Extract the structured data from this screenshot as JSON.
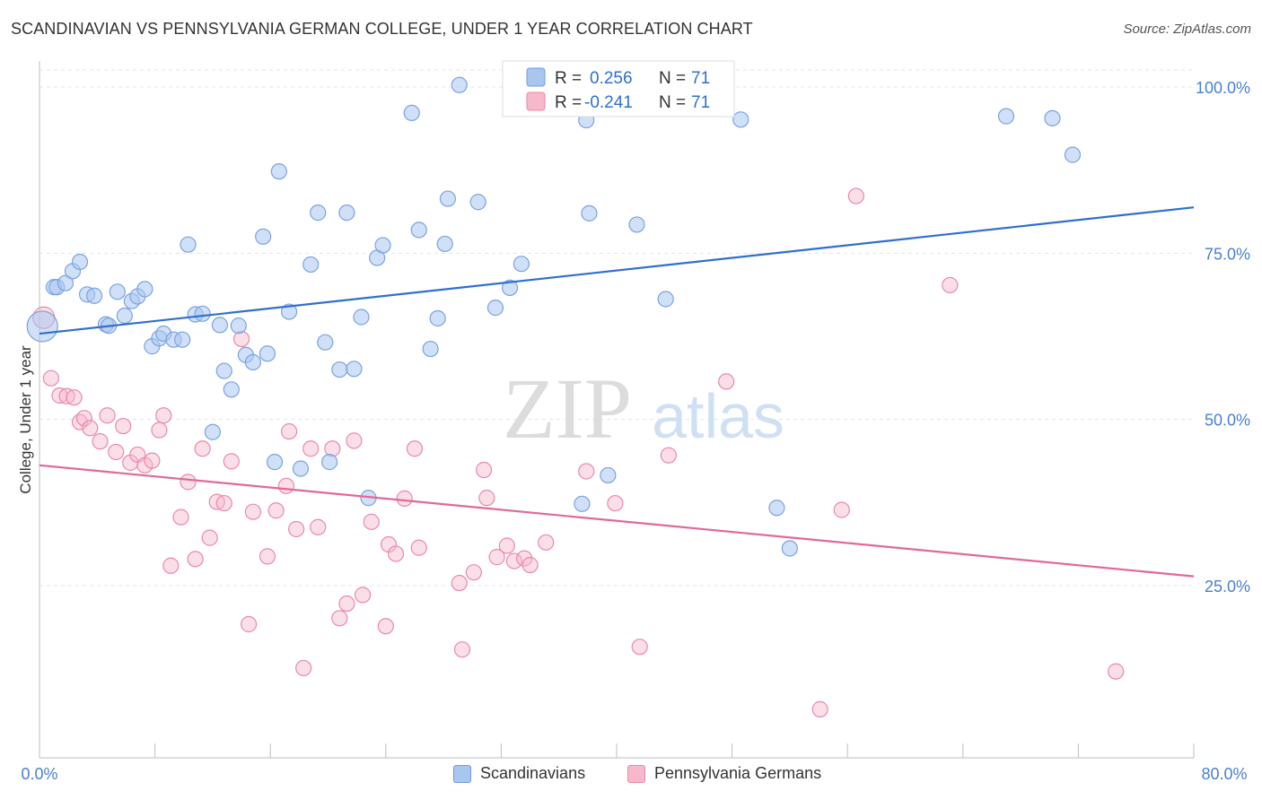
{
  "header": {
    "title": "SCANDINAVIAN VS PENNSYLVANIA GERMAN COLLEGE, UNDER 1 YEAR CORRELATION CHART",
    "source": "Source: ZipAtlas.com"
  },
  "watermark": {
    "zip": "ZIP",
    "atlas": "atlas"
  },
  "legend_top": [
    {
      "r_label": "R =",
      "r_value": "0.256",
      "n_label": "N =",
      "n_value": "71"
    },
    {
      "r_label": "R =",
      "r_value": "-0.241",
      "n_label": "N =",
      "n_value": "71"
    }
  ],
  "colors": {
    "blue_fill": "#a9c6f0",
    "blue_stroke": "#6f9be0",
    "blue_line": "#2f6fcf",
    "pink_fill": "#f7b8cb",
    "pink_stroke": "#ea89a8",
    "pink_line": "#e0699a",
    "axis_text": "#4a7fd0"
  },
  "chart_data": {
    "type": "scatter",
    "title": "SCANDINAVIAN VS PENNSYLVANIA GERMAN COLLEGE, UNDER 1 YEAR CORRELATION CHART",
    "xlabel": "",
    "ylabel": "College, Under 1 year",
    "xlim": [
      0,
      80
    ],
    "ylim": [
      0,
      105
    ],
    "x_tick_labels": [
      "0.0%",
      "80.0%"
    ],
    "y_ticks": [
      25,
      50,
      75,
      100
    ],
    "y_tick_labels": [
      "25.0%",
      "50.0%",
      "75.0%",
      "100.0%"
    ],
    "grid": true,
    "legend_position": "top-center",
    "series": [
      {
        "name": "Scandinavians",
        "color": "#a9c6f0",
        "r": 0.256,
        "n": 71,
        "trend": {
          "x": [
            0,
            80
          ],
          "y": [
            62.9,
            81.9
          ]
        },
        "points": [
          [
            0.2,
            64.0
          ],
          [
            1.0,
            69.9
          ],
          [
            1.2,
            69.9
          ],
          [
            1.8,
            70.5
          ],
          [
            2.3,
            72.3
          ],
          [
            2.8,
            73.7
          ],
          [
            3.3,
            68.8
          ],
          [
            3.8,
            68.6
          ],
          [
            4.6,
            64.3
          ],
          [
            4.8,
            64.1
          ],
          [
            5.4,
            69.2
          ],
          [
            5.9,
            65.6
          ],
          [
            6.4,
            67.8
          ],
          [
            6.8,
            68.5
          ],
          [
            7.3,
            69.6
          ],
          [
            7.8,
            61.0
          ],
          [
            8.3,
            62.2
          ],
          [
            8.6,
            62.9
          ],
          [
            9.3,
            62.0
          ],
          [
            9.9,
            62.0
          ],
          [
            10.3,
            76.3
          ],
          [
            10.8,
            65.8
          ],
          [
            11.3,
            65.9
          ],
          [
            12.0,
            48.1
          ],
          [
            12.5,
            64.2
          ],
          [
            12.8,
            57.3
          ],
          [
            13.3,
            54.5
          ],
          [
            13.8,
            64.1
          ],
          [
            14.3,
            59.7
          ],
          [
            14.8,
            58.6
          ],
          [
            15.5,
            77.5
          ],
          [
            15.8,
            59.9
          ],
          [
            16.3,
            43.6
          ],
          [
            16.6,
            87.3
          ],
          [
            17.3,
            66.2
          ],
          [
            18.1,
            42.6
          ],
          [
            18.8,
            73.3
          ],
          [
            19.3,
            81.1
          ],
          [
            19.8,
            61.6
          ],
          [
            20.1,
            43.6
          ],
          [
            20.8,
            57.5
          ],
          [
            21.3,
            81.1
          ],
          [
            21.8,
            57.6
          ],
          [
            22.3,
            65.4
          ],
          [
            22.8,
            38.2
          ],
          [
            23.4,
            74.3
          ],
          [
            23.8,
            76.2
          ],
          [
            25.8,
            96.1
          ],
          [
            26.3,
            78.5
          ],
          [
            27.1,
            60.6
          ],
          [
            27.6,
            65.2
          ],
          [
            28.1,
            76.4
          ],
          [
            28.3,
            83.2
          ],
          [
            29.1,
            100.3
          ],
          [
            30.4,
            82.7
          ],
          [
            31.6,
            66.8
          ],
          [
            32.6,
            69.8
          ],
          [
            33.4,
            73.4
          ],
          [
            37.6,
            37.3
          ],
          [
            37.9,
            95.0
          ],
          [
            38.1,
            81.0
          ],
          [
            39.4,
            41.6
          ],
          [
            41.4,
            79.3
          ],
          [
            43.4,
            68.1
          ],
          [
            47.4,
            100.1
          ],
          [
            48.6,
            95.1
          ],
          [
            51.1,
            36.7
          ],
          [
            52.0,
            30.6
          ],
          [
            67.0,
            95.6
          ],
          [
            70.2,
            95.3
          ],
          [
            71.6,
            89.8
          ]
        ]
      },
      {
        "name": "Pennsylvania Germans",
        "color": "#f7b8cb",
        "r": -0.241,
        "n": 71,
        "trend": {
          "x": [
            0,
            80
          ],
          "y": [
            43.1,
            26.4
          ]
        },
        "points": [
          [
            0.3,
            65.3
          ],
          [
            0.8,
            56.2
          ],
          [
            1.4,
            53.6
          ],
          [
            1.9,
            53.5
          ],
          [
            2.4,
            53.3
          ],
          [
            2.8,
            49.6
          ],
          [
            3.1,
            50.2
          ],
          [
            3.5,
            48.7
          ],
          [
            4.2,
            46.7
          ],
          [
            4.7,
            50.6
          ],
          [
            5.3,
            45.1
          ],
          [
            5.8,
            49.0
          ],
          [
            6.3,
            43.5
          ],
          [
            6.8,
            44.7
          ],
          [
            7.3,
            43.1
          ],
          [
            7.8,
            43.8
          ],
          [
            8.3,
            48.4
          ],
          [
            8.6,
            50.6
          ],
          [
            9.1,
            28.0
          ],
          [
            9.8,
            35.3
          ],
          [
            10.3,
            40.6
          ],
          [
            10.8,
            29.0
          ],
          [
            11.3,
            45.6
          ],
          [
            11.8,
            32.2
          ],
          [
            12.3,
            37.6
          ],
          [
            12.8,
            37.4
          ],
          [
            13.3,
            43.7
          ],
          [
            14.0,
            62.1
          ],
          [
            14.5,
            19.2
          ],
          [
            14.8,
            36.1
          ],
          [
            15.8,
            29.4
          ],
          [
            16.4,
            36.3
          ],
          [
            17.1,
            40.0
          ],
          [
            17.3,
            48.2
          ],
          [
            17.8,
            33.5
          ],
          [
            18.3,
            12.6
          ],
          [
            18.8,
            45.6
          ],
          [
            19.3,
            33.8
          ],
          [
            20.3,
            45.6
          ],
          [
            20.8,
            20.1
          ],
          [
            21.3,
            22.3
          ],
          [
            21.8,
            46.8
          ],
          [
            22.4,
            23.6
          ],
          [
            23.0,
            34.6
          ],
          [
            24.0,
            18.9
          ],
          [
            24.2,
            31.2
          ],
          [
            24.7,
            29.8
          ],
          [
            25.3,
            38.1
          ],
          [
            26.0,
            45.6
          ],
          [
            26.3,
            30.7
          ],
          [
            29.1,
            25.4
          ],
          [
            29.3,
            15.4
          ],
          [
            30.1,
            27.0
          ],
          [
            30.8,
            42.4
          ],
          [
            31.0,
            38.2
          ],
          [
            31.7,
            29.3
          ],
          [
            32.4,
            31.0
          ],
          [
            32.9,
            28.7
          ],
          [
            33.6,
            29.1
          ],
          [
            34.0,
            28.1
          ],
          [
            35.1,
            31.5
          ],
          [
            37.9,
            42.2
          ],
          [
            39.9,
            37.4
          ],
          [
            41.6,
            15.8
          ],
          [
            43.6,
            44.6
          ],
          [
            47.6,
            55.7
          ],
          [
            54.1,
            6.4
          ],
          [
            55.6,
            36.4
          ],
          [
            56.6,
            83.6
          ],
          [
            63.1,
            70.2
          ],
          [
            74.6,
            12.1
          ]
        ]
      }
    ]
  }
}
